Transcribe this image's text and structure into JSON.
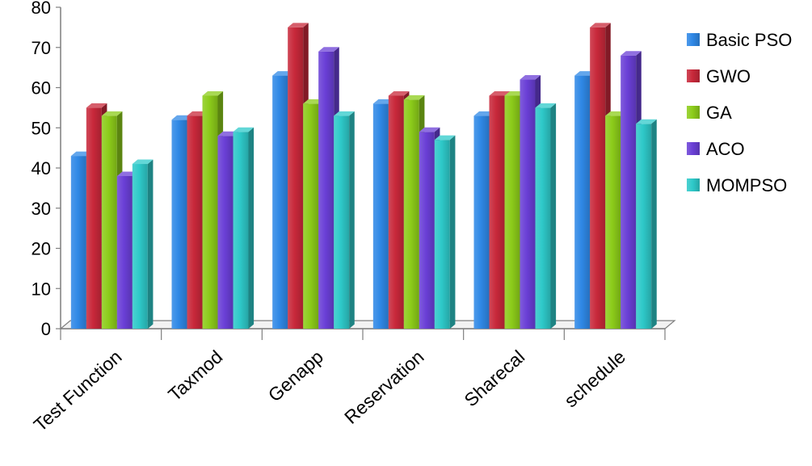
{
  "chart_data": {
    "type": "bar",
    "title": "",
    "xlabel": "",
    "ylabel": "",
    "ylim": [
      0,
      80
    ],
    "yticks": [
      0,
      10,
      20,
      30,
      40,
      50,
      60,
      70,
      80
    ],
    "grid": false,
    "legend": "right",
    "categories": [
      "Test Function",
      "Taxmod",
      "Genapp",
      "Reservation",
      "Sharecal",
      "schedule"
    ],
    "series": [
      {
        "name": "Basic PSO",
        "color": "#2f88e6",
        "values": [
          43,
          52,
          63,
          56,
          53,
          63
        ]
      },
      {
        "name": "GWO",
        "color": "#c8283a",
        "values": [
          55,
          53,
          75,
          58,
          58,
          75
        ]
      },
      {
        "name": "GA",
        "color": "#8ccc1a",
        "values": [
          53,
          58,
          56,
          57,
          58,
          53
        ]
      },
      {
        "name": "ACO",
        "color": "#6a3fd6",
        "values": [
          38,
          48,
          69,
          49,
          62,
          68
        ]
      },
      {
        "name": "MOMPSO",
        "color": "#2ec9c9",
        "values": [
          41,
          49,
          53,
          47,
          55,
          51
        ]
      }
    ]
  }
}
